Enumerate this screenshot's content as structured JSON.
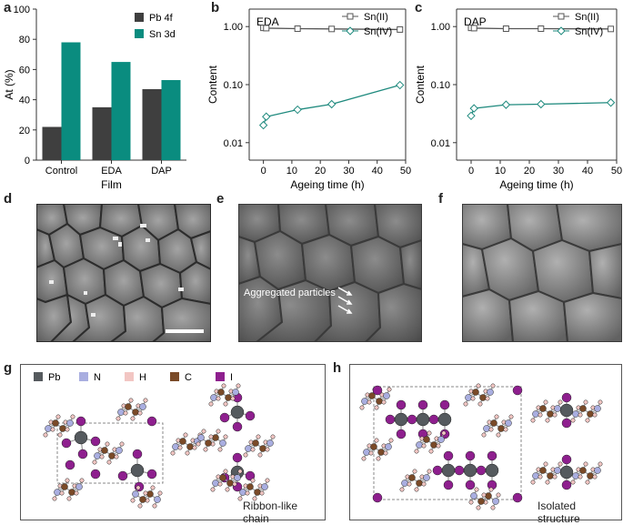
{
  "panels": {
    "a": "a",
    "b": "b",
    "c": "c",
    "d": "d",
    "e": "e",
    "f": "f",
    "g": "g",
    "h": "h"
  },
  "colors": {
    "pb": "#3f3f3f",
    "sn": "#0a8c7f",
    "sn2": "#555555",
    "sn4": "#1f8a7e",
    "I": "#8e1f8e",
    "C": "#7a4a28",
    "N": "#a9aee0",
    "H": "#f2c6c3"
  },
  "chart_data": [
    {
      "type": "bar",
      "categories": [
        "Control",
        "EDA",
        "DAP"
      ],
      "series": [
        {
          "name": "Pb 4f",
          "values": [
            22,
            35,
            47
          ]
        },
        {
          "name": "Sn 3d",
          "values": [
            78,
            65,
            53
          ]
        }
      ],
      "xlabel": "Film",
      "ylabel": "At (%)",
      "ylim": [
        0,
        100
      ],
      "yticks": [
        "0",
        "20",
        "40",
        "60",
        "80",
        "100"
      ],
      "legend_position": "top-right"
    },
    {
      "type": "line",
      "title": "EDA",
      "yscale": "log",
      "series": [
        {
          "name": "Sn(II)",
          "x": [
            0,
            1,
            12,
            24,
            48
          ],
          "values": [
            0.95,
            0.94,
            0.92,
            0.91,
            0.89
          ]
        },
        {
          "name": "Sn(IV)",
          "x": [
            0,
            1,
            12,
            24,
            48
          ],
          "values": [
            0.02,
            0.028,
            0.037,
            0.046,
            0.098
          ]
        }
      ],
      "xlabel": "Ageing time (h)",
      "ylabel": "Content",
      "xlim": [
        -5,
        50
      ],
      "ylim": [
        0.005,
        2
      ],
      "xticks": [
        "0",
        "10",
        "20",
        "30",
        "40",
        "50"
      ],
      "yticks": [
        "0.01",
        "0.10",
        "1.00"
      ],
      "legend_position": "top-right"
    },
    {
      "type": "line",
      "title": "DAP",
      "yscale": "log",
      "series": [
        {
          "name": "Sn(II)",
          "x": [
            0,
            1,
            12,
            24,
            48
          ],
          "values": [
            0.95,
            0.94,
            0.92,
            0.92,
            0.91
          ]
        },
        {
          "name": "Sn(IV)",
          "x": [
            0,
            1,
            12,
            24,
            48
          ],
          "values": [
            0.029,
            0.039,
            0.045,
            0.046,
            0.049
          ]
        }
      ],
      "xlabel": "Ageing time (h)",
      "ylabel": "Content",
      "xlim": [
        -5,
        50
      ],
      "ylim": [
        0.005,
        2
      ],
      "xticks": [
        "0",
        "10",
        "20",
        "30",
        "40",
        "50"
      ],
      "yticks": [
        "0.01",
        "0.10",
        "1.00"
      ],
      "legend_position": "top-right"
    }
  ],
  "sem_e_annotation": "Aggregated particles",
  "panel_g": {
    "legend": [
      "Pb",
      "N",
      "H",
      "C",
      "I"
    ],
    "caption": "Ribbon-like chain"
  },
  "panel_h": {
    "caption": "Isolated structure"
  }
}
